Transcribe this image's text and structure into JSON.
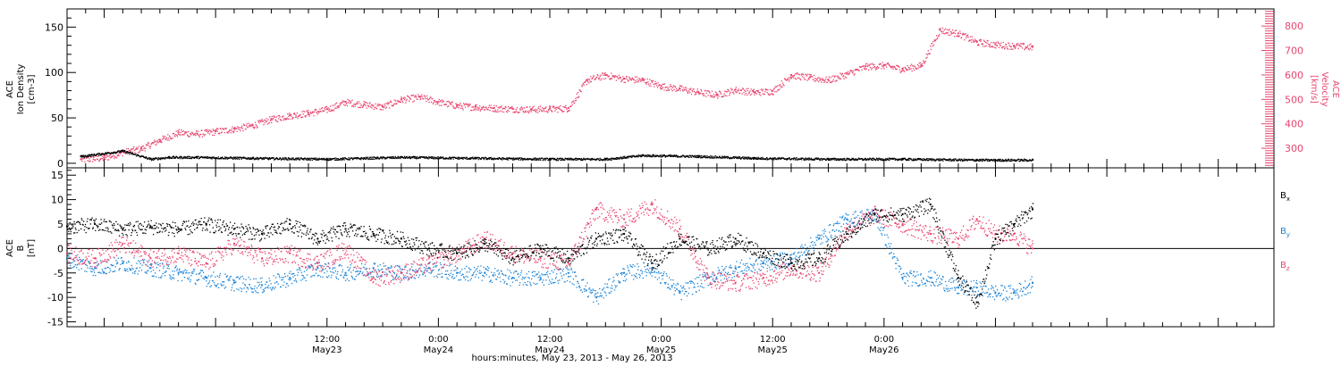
{
  "chart_data": [
    {
      "type": "scatter",
      "panel": "ion density and velocity",
      "ylabel_lines": [
        "ACE",
        "Ion Density",
        "[cm-3]"
      ],
      "y2label_lines": [
        "ACE",
        "Velocity",
        "[km/s]"
      ],
      "ylim": [
        -5,
        170
      ],
      "y2lim": [
        220,
        870
      ],
      "yticks": [
        0,
        50,
        100,
        150
      ],
      "y2ticks": [
        300,
        400,
        500,
        600,
        700,
        800
      ],
      "series": [
        {
          "axis": "left",
          "color": "#000000",
          "values": [
            {
              "x": 1.5,
              "y": 8
            },
            {
              "x": 6,
              "y": 14
            },
            {
              "x": 9,
              "y": 5
            },
            {
              "x": 11,
              "y": 7
            },
            {
              "x": 14,
              "y": 7
            },
            {
              "x": 20,
              "y": 6
            },
            {
              "x": 28,
              "y": 5
            },
            {
              "x": 36,
              "y": 7
            },
            {
              "x": 44,
              "y": 6
            },
            {
              "x": 52,
              "y": 5
            },
            {
              "x": 58,
              "y": 5
            },
            {
              "x": 62,
              "y": 9
            },
            {
              "x": 68,
              "y": 8
            },
            {
              "x": 74,
              "y": 6
            },
            {
              "x": 82,
              "y": 5
            },
            {
              "x": 90,
              "y": 5
            },
            {
              "x": 98,
              "y": 4
            },
            {
              "x": 104,
              "y": 4
            }
          ]
        },
        {
          "axis": "right",
          "color": "#e8456e",
          "values": [
            {
              "x": 1.5,
              "y": 255
            },
            {
              "x": 4,
              "y": 262
            },
            {
              "x": 6,
              "y": 285
            },
            {
              "x": 8,
              "y": 300
            },
            {
              "x": 10,
              "y": 335
            },
            {
              "x": 12,
              "y": 365
            },
            {
              "x": 14,
              "y": 360
            },
            {
              "x": 16,
              "y": 370
            },
            {
              "x": 18,
              "y": 380
            },
            {
              "x": 20,
              "y": 395
            },
            {
              "x": 22,
              "y": 420
            },
            {
              "x": 24,
              "y": 435
            },
            {
              "x": 26,
              "y": 445
            },
            {
              "x": 28,
              "y": 460
            },
            {
              "x": 30,
              "y": 490
            },
            {
              "x": 32,
              "y": 480
            },
            {
              "x": 34,
              "y": 470
            },
            {
              "x": 36,
              "y": 500
            },
            {
              "x": 38,
              "y": 510
            },
            {
              "x": 40,
              "y": 490
            },
            {
              "x": 42,
              "y": 475
            },
            {
              "x": 44,
              "y": 470
            },
            {
              "x": 46,
              "y": 465
            },
            {
              "x": 48,
              "y": 462
            },
            {
              "x": 50,
              "y": 460
            },
            {
              "x": 52,
              "y": 462
            },
            {
              "x": 54,
              "y": 465
            },
            {
              "x": 56,
              "y": 580
            },
            {
              "x": 58,
              "y": 600
            },
            {
              "x": 60,
              "y": 585
            },
            {
              "x": 62,
              "y": 580
            },
            {
              "x": 64,
              "y": 555
            },
            {
              "x": 66,
              "y": 545
            },
            {
              "x": 68,
              "y": 530
            },
            {
              "x": 70,
              "y": 520
            },
            {
              "x": 72,
              "y": 540
            },
            {
              "x": 74,
              "y": 530
            },
            {
              "x": 76,
              "y": 535
            },
            {
              "x": 78,
              "y": 600
            },
            {
              "x": 80,
              "y": 590
            },
            {
              "x": 82,
              "y": 580
            },
            {
              "x": 84,
              "y": 605
            },
            {
              "x": 86,
              "y": 635
            },
            {
              "x": 88,
              "y": 640
            },
            {
              "x": 90,
              "y": 625
            },
            {
              "x": 92,
              "y": 640
            },
            {
              "x": 94,
              "y": 785
            },
            {
              "x": 96,
              "y": 770
            },
            {
              "x": 98,
              "y": 735
            },
            {
              "x": 100,
              "y": 725
            },
            {
              "x": 102,
              "y": 720
            },
            {
              "x": 104,
              "y": 715
            }
          ]
        }
      ]
    },
    {
      "type": "scatter",
      "panel": "magnetic field components",
      "ylabel_lines": [
        "ACE",
        "B",
        "[nT]"
      ],
      "ylim": [
        -16,
        16.5
      ],
      "yticks": [
        -15,
        -10,
        -5,
        0,
        5,
        10,
        15
      ],
      "zero_line": true,
      "series": [
        {
          "name": "Bx",
          "color": "#000000",
          "values": [
            {
              "x": 0,
              "y": 4.5
            },
            {
              "x": 3,
              "y": 5
            },
            {
              "x": 6,
              "y": 4
            },
            {
              "x": 9,
              "y": 4.5
            },
            {
              "x": 12,
              "y": 4
            },
            {
              "x": 15,
              "y": 5
            },
            {
              "x": 18,
              "y": 4
            },
            {
              "x": 21,
              "y": 3
            },
            {
              "x": 24,
              "y": 5
            },
            {
              "x": 27,
              "y": 2
            },
            {
              "x": 30,
              "y": 4
            },
            {
              "x": 33,
              "y": 3
            },
            {
              "x": 36,
              "y": 2
            },
            {
              "x": 39,
              "y": 0
            },
            {
              "x": 42,
              "y": -1
            },
            {
              "x": 45,
              "y": 1
            },
            {
              "x": 48,
              "y": -2
            },
            {
              "x": 51,
              "y": 0
            },
            {
              "x": 54,
              "y": -2
            },
            {
              "x": 57,
              "y": 2
            },
            {
              "x": 60,
              "y": 3
            },
            {
              "x": 63,
              "y": -3
            },
            {
              "x": 66,
              "y": 2
            },
            {
              "x": 69,
              "y": 0
            },
            {
              "x": 72,
              "y": 2
            },
            {
              "x": 75,
              "y": -1
            },
            {
              "x": 78,
              "y": -3
            },
            {
              "x": 81,
              "y": -2
            },
            {
              "x": 84,
              "y": 3
            },
            {
              "x": 87,
              "y": 7
            },
            {
              "x": 90,
              "y": 7
            },
            {
              "x": 93,
              "y": 9
            },
            {
              "x": 96,
              "y": -6
            },
            {
              "x": 98,
              "y": -11
            },
            {
              "x": 100,
              "y": 2
            },
            {
              "x": 102,
              "y": 5
            },
            {
              "x": 104,
              "y": 8
            }
          ]
        },
        {
          "name": "By",
          "color": "#1a83d6",
          "values": [
            {
              "x": 0,
              "y": -2
            },
            {
              "x": 3,
              "y": -4
            },
            {
              "x": 6,
              "y": -3
            },
            {
              "x": 9,
              "y": -4
            },
            {
              "x": 12,
              "y": -5
            },
            {
              "x": 15,
              "y": -6
            },
            {
              "x": 18,
              "y": -7
            },
            {
              "x": 21,
              "y": -7.5
            },
            {
              "x": 24,
              "y": -6
            },
            {
              "x": 27,
              "y": -4
            },
            {
              "x": 30,
              "y": -5
            },
            {
              "x": 33,
              "y": -4
            },
            {
              "x": 36,
              "y": -5
            },
            {
              "x": 39,
              "y": -4
            },
            {
              "x": 42,
              "y": -5
            },
            {
              "x": 45,
              "y": -5
            },
            {
              "x": 48,
              "y": -6
            },
            {
              "x": 51,
              "y": -6
            },
            {
              "x": 54,
              "y": -5
            },
            {
              "x": 57,
              "y": -10
            },
            {
              "x": 60,
              "y": -5
            },
            {
              "x": 63,
              "y": -4
            },
            {
              "x": 66,
              "y": -9
            },
            {
              "x": 69,
              "y": -6
            },
            {
              "x": 72,
              "y": -4
            },
            {
              "x": 75,
              "y": -3
            },
            {
              "x": 78,
              "y": -2
            },
            {
              "x": 81,
              "y": 2
            },
            {
              "x": 84,
              "y": 6
            },
            {
              "x": 87,
              "y": 7
            },
            {
              "x": 90,
              "y": -6
            },
            {
              "x": 93,
              "y": -6
            },
            {
              "x": 96,
              "y": -8
            },
            {
              "x": 98,
              "y": -8
            },
            {
              "x": 100,
              "y": -9
            },
            {
              "x": 102,
              "y": -9
            },
            {
              "x": 104,
              "y": -7
            }
          ]
        },
        {
          "name": "Bz",
          "color": "#e8456e",
          "values": [
            {
              "x": 0,
              "y": -1
            },
            {
              "x": 3,
              "y": -2
            },
            {
              "x": 6,
              "y": 1
            },
            {
              "x": 9,
              "y": -2
            },
            {
              "x": 12,
              "y": -1
            },
            {
              "x": 15,
              "y": -3
            },
            {
              "x": 18,
              "y": 1
            },
            {
              "x": 21,
              "y": -2
            },
            {
              "x": 24,
              "y": -1
            },
            {
              "x": 27,
              "y": -3
            },
            {
              "x": 30,
              "y": 0
            },
            {
              "x": 33,
              "y": -6
            },
            {
              "x": 36,
              "y": -5
            },
            {
              "x": 39,
              "y": -3
            },
            {
              "x": 42,
              "y": -1
            },
            {
              "x": 45,
              "y": 2
            },
            {
              "x": 48,
              "y": -1
            },
            {
              "x": 51,
              "y": -2
            },
            {
              "x": 54,
              "y": -3
            },
            {
              "x": 57,
              "y": 8
            },
            {
              "x": 60,
              "y": 6
            },
            {
              "x": 63,
              "y": 9
            },
            {
              "x": 66,
              "y": 4
            },
            {
              "x": 69,
              "y": -6
            },
            {
              "x": 72,
              "y": -7
            },
            {
              "x": 75,
              "y": -6
            },
            {
              "x": 78,
              "y": -4
            },
            {
              "x": 81,
              "y": -5
            },
            {
              "x": 84,
              "y": 4
            },
            {
              "x": 87,
              "y": 7
            },
            {
              "x": 90,
              "y": 5
            },
            {
              "x": 93,
              "y": 3
            },
            {
              "x": 96,
              "y": 2
            },
            {
              "x": 98,
              "y": 6
            },
            {
              "x": 100,
              "y": 3
            },
            {
              "x": 102,
              "y": 3
            },
            {
              "x": 104,
              "y": 0
            }
          ]
        }
      ]
    }
  ],
  "legend_right": [
    {
      "base": "B",
      "sub": "x",
      "color": "#000000"
    },
    {
      "base": "B",
      "sub": "y",
      "color": "#1a83d6"
    },
    {
      "base": "B",
      "sub": "z",
      "color": "#e8456e"
    }
  ],
  "xaxis": {
    "unit": "hours since 2013-05-22 08:00",
    "xlim": [
      0,
      130
    ],
    "major_ticks": [
      {
        "x": 28,
        "line1": "12:00",
        "line2": "May23"
      },
      {
        "x": 40,
        "line1": "0:00",
        "line2": "May24"
      },
      {
        "x": 52,
        "line1": "12:00",
        "line2": "May24"
      },
      {
        "x": 64,
        "line1": "0:00",
        "line2": "May25"
      },
      {
        "x": 76,
        "line1": "12:00",
        "line2": "May25"
      },
      {
        "x": 88,
        "line1": "0:00",
        "line2": "May26"
      }
    ],
    "title": "hours:minutes, May 23, 2013 - May 26, 2013"
  },
  "colors": {
    "black": "#000000",
    "blue": "#1a83d6",
    "pink": "#e8456e",
    "axis": "#000000"
  }
}
